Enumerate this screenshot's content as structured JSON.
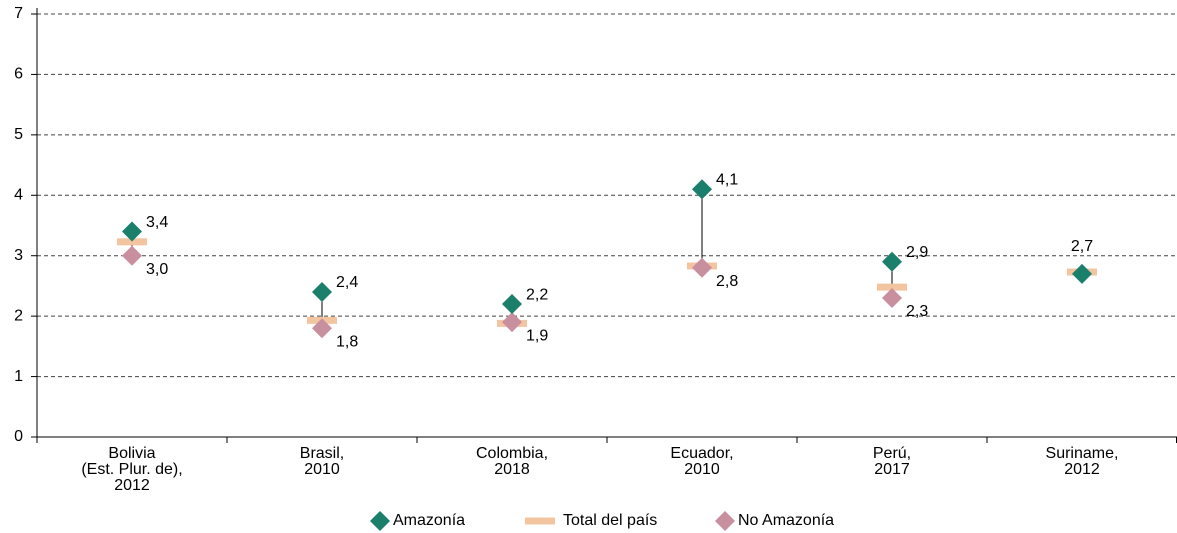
{
  "chart_data": {
    "type": "dot-range",
    "categories": [
      [
        "Bolivia",
        "(Est. Plur. de),",
        "2012"
      ],
      [
        "Brasil,",
        "2010"
      ],
      [
        "Colombia,",
        "2018"
      ],
      [
        "Ecuador,",
        "2010"
      ],
      [
        "Perú,",
        "2017"
      ],
      [
        "Suriname,",
        "2012"
      ]
    ],
    "series": [
      {
        "name": "Amazonía",
        "color": "#1a7f6b",
        "marker": "diamond",
        "values": [
          3.4,
          2.4,
          2.2,
          4.1,
          2.9,
          2.7
        ],
        "value_labels": [
          "3,4",
          "2,4",
          "2,2",
          "4,1",
          "2,9",
          "2,7"
        ]
      },
      {
        "name": "Total del país",
        "color": "#f2c4a0",
        "marker": "bar",
        "values": [
          3.23,
          1.93,
          1.88,
          2.83,
          2.48,
          2.73
        ]
      },
      {
        "name": "No Amazonía",
        "color": "#c8909e",
        "marker": "diamond",
        "values": [
          3.0,
          1.8,
          1.9,
          2.8,
          2.3,
          null
        ],
        "value_labels": [
          "3,0",
          "1,8",
          "1,9",
          "2,8",
          "2,3",
          null
        ]
      }
    ],
    "ylim": [
      0,
      7
    ],
    "yticks": [
      0,
      1,
      2,
      3,
      4,
      5,
      6,
      7
    ],
    "grid": true,
    "legend": "bottom"
  }
}
